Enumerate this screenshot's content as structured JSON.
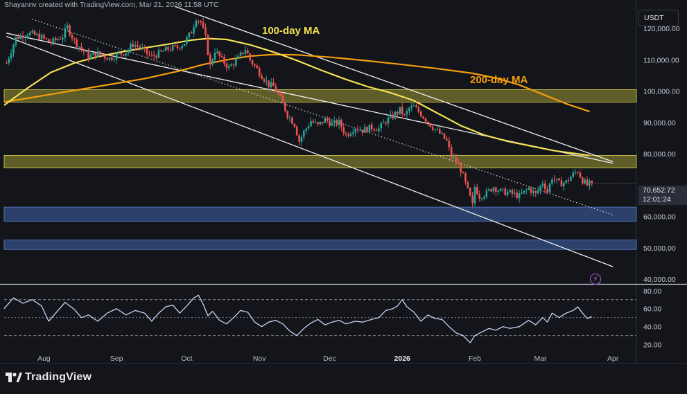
{
  "header": {
    "attribution": "Shayannv created with TradingView.com, Mar 21, 2026 11:58 UTC"
  },
  "toolbar": {
    "currency_label": "USDT"
  },
  "annotations": {
    "ma100_label": "100-day MA",
    "ma200_label": "200-day MA"
  },
  "price_tag": {
    "last_price": "70,652.72",
    "countdown": "12:01:24"
  },
  "footer": {
    "logo_text": "TradingView"
  },
  "colors": {
    "background": "#14151b",
    "ma100": "#f3e152",
    "ma200": "#f59e0b",
    "candle_up": "#26a69a",
    "candle_down": "#ef5350",
    "zone_yellow": "#8e8a32",
    "zone_blue": "#3a5b9b",
    "rsi_line": "#c9d3f5",
    "channel_line": "#f0f0f0",
    "alert": "#b15be0"
  },
  "chart_data": [
    {
      "type": "candlestick",
      "pair_unit": "USDT",
      "x_tick_labels": [
        "Aug",
        "Sep",
        "Oct",
        "Nov",
        "Dec",
        "2026",
        "Feb",
        "Mar",
        "Apr"
      ],
      "y_tick_labels": [
        "120,000.00",
        "110,000.00",
        "100,000.00",
        "90,000.00",
        "80,000.00",
        "60,000.00",
        "50,000.00",
        "40,000.00"
      ],
      "ylim": [
        38500,
        126000
      ],
      "x_ticks_days": {
        "Aug": 17,
        "Sep": 48,
        "Oct": 78,
        "Nov": 109,
        "Dec": 139,
        "2026": 170,
        "Feb": 201,
        "Mar": 229,
        "Apr": 260
      },
      "xlim_days": [
        0,
        270
      ],
      "last_price": 70652.72,
      "close_path": [
        [
          1,
          109000
        ],
        [
          5,
          117000
        ],
        [
          10,
          118500
        ],
        [
          15,
          117500
        ],
        [
          20,
          115500
        ],
        [
          25,
          117500
        ],
        [
          27,
          120500
        ],
        [
          30,
          116000
        ],
        [
          33,
          113500
        ],
        [
          36,
          111000
        ],
        [
          40,
          112000
        ],
        [
          45,
          110500
        ],
        [
          48,
          111500
        ],
        [
          52,
          112500
        ],
        [
          55,
          115000
        ],
        [
          58,
          114000
        ],
        [
          60,
          112500
        ],
        [
          63,
          111000
        ],
        [
          66,
          112000
        ],
        [
          70,
          113500
        ],
        [
          74,
          114000
        ],
        [
          77,
          115500
        ],
        [
          80,
          119000
        ],
        [
          82,
          123500
        ],
        [
          84,
          122000
        ],
        [
          86,
          117000
        ],
        [
          88,
          108000
        ],
        [
          90,
          113000
        ],
        [
          93,
          110000
        ],
        [
          96,
          107500
        ],
        [
          100,
          110500
        ],
        [
          103,
          113500
        ],
        [
          105,
          110000
        ],
        [
          108,
          107000
        ],
        [
          111,
          104000
        ],
        [
          113,
          102000
        ],
        [
          115,
          101500
        ],
        [
          118,
          97500
        ],
        [
          121,
          92500
        ],
        [
          124,
          89500
        ],
        [
          126,
          84000
        ],
        [
          128,
          87000
        ],
        [
          131,
          90500
        ],
        [
          134,
          89000
        ],
        [
          137,
          91000
        ],
        [
          140,
          89500
        ],
        [
          143,
          90000
        ],
        [
          146,
          86000
        ],
        [
          150,
          88500
        ],
        [
          153,
          87500
        ],
        [
          157,
          88500
        ],
        [
          160,
          88000
        ],
        [
          163,
          90500
        ],
        [
          166,
          92000
        ],
        [
          169,
          94000
        ],
        [
          171,
          92000
        ],
        [
          173,
          94500
        ],
        [
          175,
          95000
        ],
        [
          177,
          93500
        ],
        [
          180,
          91000
        ],
        [
          183,
          88500
        ],
        [
          186,
          86500
        ],
        [
          189,
          84000
        ],
        [
          191,
          79000
        ],
        [
          193,
          77500
        ],
        [
          195,
          75000
        ],
        [
          197,
          70500
        ],
        [
          199,
          66000
        ],
        [
          200,
          63500
        ],
        [
          201,
          69500
        ],
        [
          203,
          66500
        ],
        [
          206,
          67500
        ],
        [
          209,
          69500
        ],
        [
          212,
          68000
        ],
        [
          216,
          67500
        ],
        [
          220,
          66500
        ],
        [
          224,
          69000
        ],
        [
          227,
          67000
        ],
        [
          230,
          71000
        ],
        [
          232,
          68000
        ],
        [
          234,
          72500
        ],
        [
          237,
          70500
        ],
        [
          240,
          71000
        ],
        [
          243,
          73500
        ],
        [
          245,
          74500
        ],
        [
          247,
          71500
        ],
        [
          249,
          70000
        ],
        [
          251,
          70652
        ]
      ],
      "ma100": [
        [
          0,
          95500
        ],
        [
          10,
          101000
        ],
        [
          20,
          106000
        ],
        [
          30,
          109000
        ],
        [
          40,
          111000
        ],
        [
          50,
          112500
        ],
        [
          60,
          113800
        ],
        [
          70,
          115000
        ],
        [
          80,
          116300
        ],
        [
          87,
          116800
        ],
        [
          95,
          116500
        ],
        [
          105,
          114800
        ],
        [
          115,
          112500
        ],
        [
          125,
          109800
        ],
        [
          135,
          106800
        ],
        [
          145,
          104000
        ],
        [
          155,
          101500
        ],
        [
          165,
          99500
        ],
        [
          175,
          97000
        ],
        [
          185,
          93000
        ],
        [
          195,
          89000
        ],
        [
          205,
          86000
        ],
        [
          215,
          84000
        ],
        [
          225,
          82500
        ],
        [
          235,
          81000
        ],
        [
          245,
          80000
        ],
        [
          250,
          79500
        ]
      ],
      "ma200": [
        [
          0,
          96500
        ],
        [
          20,
          99000
        ],
        [
          40,
          101500
        ],
        [
          60,
          104000
        ],
        [
          75,
          106500
        ],
        [
          85,
          108500
        ],
        [
          95,
          110000
        ],
        [
          105,
          111200
        ],
        [
          115,
          111700
        ],
        [
          125,
          111600
        ],
        [
          140,
          110800
        ],
        [
          155,
          109700
        ],
        [
          170,
          108500
        ],
        [
          185,
          107200
        ],
        [
          200,
          105700
        ],
        [
          210,
          104200
        ],
        [
          220,
          102000
        ],
        [
          230,
          99000
        ],
        [
          240,
          96000
        ],
        [
          250,
          93500
        ]
      ],
      "zones": [
        {
          "color": "yellow",
          "low": 96500,
          "high": 100500
        },
        {
          "color": "yellow",
          "low": 75500,
          "high": 79500
        },
        {
          "color": "blue",
          "low": 58500,
          "high": 63000
        },
        {
          "color": "blue",
          "low": 49500,
          "high": 52500
        }
      ],
      "channel_lines": [
        {
          "style": "solid",
          "from": [
            1,
            118500
          ],
          "to": [
            260,
            77000
          ]
        },
        {
          "style": "solid",
          "from": [
            73,
            127000
          ],
          "to": [
            260,
            77500
          ]
        },
        {
          "style": "solid",
          "from": [
            1,
            117500
          ],
          "to": [
            260,
            44000
          ]
        },
        {
          "style": "dotted",
          "from": [
            12,
            123000
          ],
          "to": [
            260,
            60500
          ]
        }
      ]
    },
    {
      "type": "line",
      "indicator": "RSI",
      "y_tick_labels": [
        "80.00",
        "60.00",
        "40.00",
        "20.00"
      ],
      "ylim": [
        12,
        86
      ],
      "guide_levels": [
        70,
        50,
        30
      ],
      "points": [
        [
          0,
          60
        ],
        [
          4,
          72
        ],
        [
          8,
          66
        ],
        [
          12,
          70
        ],
        [
          16,
          63
        ],
        [
          19,
          46
        ],
        [
          22,
          55
        ],
        [
          26,
          67
        ],
        [
          30,
          59
        ],
        [
          33,
          50
        ],
        [
          36,
          53
        ],
        [
          40,
          46
        ],
        [
          44,
          55
        ],
        [
          48,
          60
        ],
        [
          52,
          53
        ],
        [
          56,
          58
        ],
        [
          60,
          55
        ],
        [
          63,
          46
        ],
        [
          66,
          55
        ],
        [
          69,
          62
        ],
        [
          72,
          64
        ],
        [
          75,
          55
        ],
        [
          78,
          63
        ],
        [
          81,
          72
        ],
        [
          83,
          75
        ],
        [
          85,
          65
        ],
        [
          87,
          52
        ],
        [
          89,
          57
        ],
        [
          92,
          47
        ],
        [
          95,
          43
        ],
        [
          98,
          50
        ],
        [
          101,
          58
        ],
        [
          104,
          56
        ],
        [
          107,
          45
        ],
        [
          110,
          40
        ],
        [
          113,
          45
        ],
        [
          116,
          47
        ],
        [
          119,
          43
        ],
        [
          122,
          35
        ],
        [
          125,
          30
        ],
        [
          128,
          38
        ],
        [
          131,
          44
        ],
        [
          134,
          48
        ],
        [
          137,
          42
        ],
        [
          140,
          45
        ],
        [
          143,
          47
        ],
        [
          146,
          43
        ],
        [
          150,
          46
        ],
        [
          153,
          45
        ],
        [
          157,
          48
        ],
        [
          160,
          50
        ],
        [
          163,
          58
        ],
        [
          166,
          60
        ],
        [
          168,
          63
        ],
        [
          170,
          70
        ],
        [
          172,
          62
        ],
        [
          175,
          56
        ],
        [
          178,
          46
        ],
        [
          181,
          53
        ],
        [
          184,
          49
        ],
        [
          187,
          48
        ],
        [
          190,
          40
        ],
        [
          193,
          33
        ],
        [
          196,
          30
        ],
        [
          199,
          22
        ],
        [
          201,
          30
        ],
        [
          204,
          34
        ],
        [
          207,
          38
        ],
        [
          210,
          36
        ],
        [
          213,
          40
        ],
        [
          216,
          38
        ],
        [
          220,
          40
        ],
        [
          224,
          47
        ],
        [
          227,
          42
        ],
        [
          230,
          50
        ],
        [
          232,
          45
        ],
        [
          234,
          55
        ],
        [
          237,
          50
        ],
        [
          240,
          55
        ],
        [
          243,
          58
        ],
        [
          245,
          62
        ],
        [
          247,
          55
        ],
        [
          249,
          49
        ],
        [
          251,
          51
        ]
      ]
    }
  ]
}
